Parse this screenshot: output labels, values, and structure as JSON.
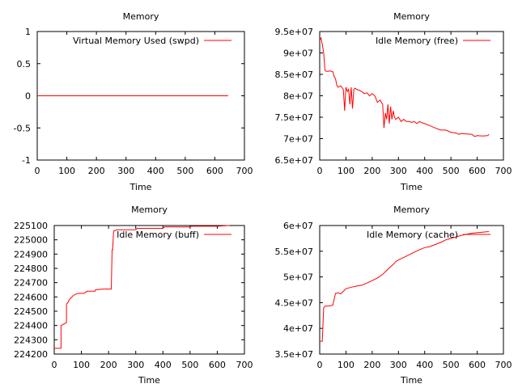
{
  "chart_data": [
    {
      "type": "line",
      "title": "Memory",
      "xlabel": "Time",
      "ylabel": "",
      "xlim": [
        0,
        700
      ],
      "ylim": [
        -1,
        1
      ],
      "xticks": [
        "0",
        "100",
        "200",
        "300",
        "400",
        "500",
        "600",
        "700"
      ],
      "yticks": [
        "-1",
        "-0.5",
        "0",
        "0.5",
        "1"
      ],
      "yticks_values": [
        -1,
        -0.5,
        0,
        0.5,
        1
      ],
      "legend": "top-right",
      "grid": false,
      "series": [
        {
          "name": "Virtual Memory Used (swpd)",
          "color": "#ff0000",
          "x": [
            0,
            645
          ],
          "y": [
            0,
            0
          ]
        }
      ]
    },
    {
      "type": "line",
      "title": "Memory",
      "xlabel": "Time",
      "ylabel": "",
      "xlim": [
        0,
        700
      ],
      "ylim": [
        65000000,
        95000000
      ],
      "xticks": [
        "0",
        "100",
        "200",
        "300",
        "400",
        "500",
        "600",
        "700"
      ],
      "yticks": [
        "6.5e+07",
        "7e+07",
        "7.5e+07",
        "8e+07",
        "8.5e+07",
        "9e+07",
        "9.5e+07"
      ],
      "yticks_values": [
        65000000,
        70000000,
        75000000,
        80000000,
        85000000,
        90000000,
        95000000
      ],
      "legend": "top-right",
      "grid": false,
      "series": [
        {
          "name": "Idle Memory (free)",
          "color": "#ff0000",
          "x": [
            0,
            5,
            10,
            15,
            20,
            25,
            30,
            40,
            50,
            55,
            60,
            65,
            70,
            80,
            90,
            95,
            100,
            105,
            110,
            115,
            120,
            125,
            130,
            135,
            140,
            150,
            160,
            170,
            180,
            190,
            200,
            210,
            220,
            230,
            240,
            245,
            250,
            255,
            260,
            265,
            270,
            275,
            280,
            285,
            290,
            300,
            310,
            320,
            330,
            340,
            350,
            360,
            370,
            380,
            390,
            400,
            420,
            440,
            460,
            480,
            500,
            520,
            530,
            540,
            560,
            580,
            590,
            600,
            620,
            640,
            645
          ],
          "y": [
            93000000,
            93500000,
            92000000,
            90000000,
            86000000,
            85700000,
            85700000,
            85800000,
            85600000,
            84500000,
            84000000,
            82500000,
            82000000,
            82300000,
            81500000,
            76500000,
            82000000,
            81000000,
            81500000,
            78000000,
            82000000,
            77000000,
            81500000,
            81800000,
            81500000,
            81300000,
            81000000,
            80500000,
            80700000,
            80000000,
            80500000,
            80000000,
            78500000,
            79000000,
            78000000,
            72500000,
            76000000,
            74500000,
            78000000,
            73500000,
            77500000,
            74500000,
            76500000,
            75000000,
            74500000,
            75000000,
            74000000,
            74500000,
            74000000,
            74000000,
            73800000,
            74000000,
            73500000,
            74000000,
            73700000,
            73500000,
            73000000,
            72500000,
            72000000,
            72000000,
            71500000,
            71300000,
            71000000,
            71200000,
            71100000,
            71000000,
            70500000,
            70700000,
            70600000,
            70700000,
            71000000
          ]
        }
      ]
    },
    {
      "type": "line",
      "title": "Memory",
      "xlabel": "Time",
      "ylabel": "",
      "xlim": [
        0,
        700
      ],
      "ylim": [
        224200,
        225100
      ],
      "xticks": [
        "0",
        "100",
        "200",
        "300",
        "400",
        "500",
        "600",
        "700"
      ],
      "yticks": [
        "224200",
        "224300",
        "224400",
        "224500",
        "224600",
        "224700",
        "224800",
        "224900",
        "225000",
        "225100"
      ],
      "yticks_values": [
        224200,
        224300,
        224400,
        224500,
        224600,
        224700,
        224800,
        224900,
        225000,
        225100
      ],
      "legend": "top-right",
      "grid": false,
      "series": [
        {
          "name": "Idle Memory (buff)",
          "color": "#ff0000",
          "x": [
            0,
            25,
            25,
            35,
            45,
            45,
            50,
            55,
            60,
            70,
            80,
            90,
            100,
            110,
            120,
            150,
            152,
            180,
            210,
            213,
            215,
            218,
            220,
            225,
            230,
            300,
            305,
            400,
            405,
            500,
            505,
            600,
            640,
            645
          ],
          "y": [
            224240,
            224240,
            224400,
            224410,
            224420,
            224550,
            224560,
            224580,
            224590,
            224610,
            224620,
            224625,
            224625,
            224625,
            224640,
            224640,
            224650,
            224655,
            224655,
            224930,
            224930,
            225050,
            225065,
            225065,
            225070,
            225070,
            225080,
            225080,
            225090,
            225090,
            225095,
            225095,
            225100,
            225100
          ]
        }
      ]
    },
    {
      "type": "line",
      "title": "Memory",
      "xlabel": "Time",
      "ylabel": "",
      "xlim": [
        0,
        700
      ],
      "ylim": [
        35000000,
        60000000
      ],
      "xticks": [
        "0",
        "100",
        "200",
        "300",
        "400",
        "500",
        "600",
        "700"
      ],
      "yticks": [
        "3.5e+07",
        "4e+07",
        "4.5e+07",
        "5e+07",
        "5.5e+07",
        "6e+07"
      ],
      "yticks_values": [
        35000000,
        40000000,
        45000000,
        50000000,
        55000000,
        60000000
      ],
      "legend": "top-right",
      "grid": false,
      "series": [
        {
          "name": "Idle Memory (cache)",
          "color": "#ff0000",
          "x": [
            0,
            10,
            15,
            20,
            40,
            50,
            60,
            70,
            80,
            90,
            100,
            120,
            140,
            160,
            180,
            200,
            220,
            240,
            260,
            270,
            280,
            290,
            300,
            320,
            340,
            360,
            380,
            400,
            420,
            440,
            460,
            480,
            500,
            520,
            540,
            560,
            580,
            600,
            620,
            640,
            645
          ],
          "y": [
            37500000,
            37500000,
            44000000,
            44300000,
            44400000,
            44500000,
            46800000,
            46900000,
            46700000,
            47200000,
            47700000,
            48000000,
            48200000,
            48400000,
            48800000,
            49300000,
            49800000,
            50500000,
            51500000,
            52000000,
            52400000,
            53000000,
            53300000,
            53800000,
            54300000,
            54800000,
            55300000,
            55700000,
            55900000,
            56300000,
            56700000,
            57200000,
            57500000,
            57800000,
            58100000,
            58300000,
            58500000,
            58600000,
            58700000,
            58800000,
            58800000
          ]
        }
      ]
    }
  ]
}
